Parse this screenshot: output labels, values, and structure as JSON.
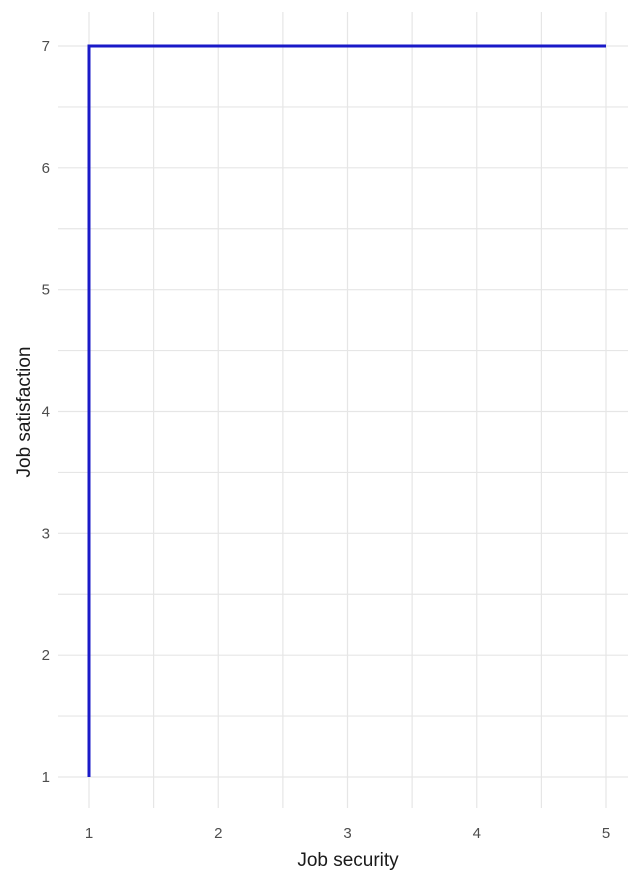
{
  "chart_data": {
    "type": "line",
    "xlabel": "Job security",
    "ylabel": "Job satisfaction",
    "xlim": [
      1,
      5
    ],
    "ylim": [
      1,
      7
    ],
    "x_ticks": [
      1,
      2,
      3,
      4,
      5
    ],
    "y_ticks": [
      1,
      2,
      3,
      4,
      5,
      6,
      7
    ],
    "grid": true,
    "legend": "none",
    "series": [
      {
        "color": "#1a1ac8",
        "points": [
          {
            "x": 1,
            "y": 1
          },
          {
            "x": 1,
            "y": 7
          },
          {
            "x": 5,
            "y": 7
          }
        ]
      }
    ]
  }
}
